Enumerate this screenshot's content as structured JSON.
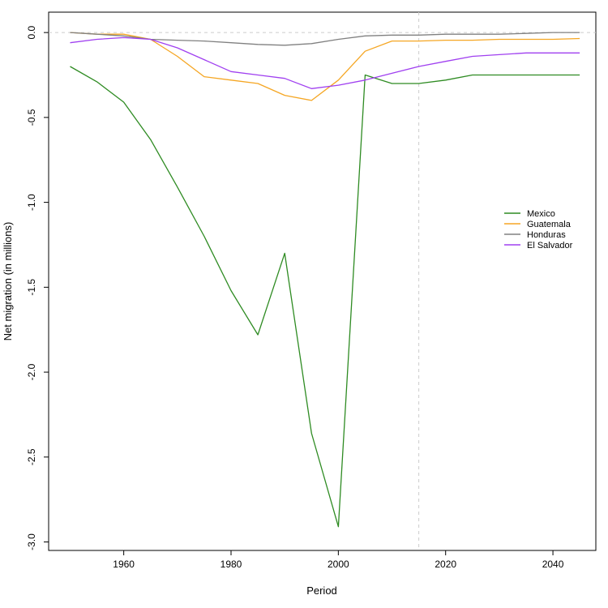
{
  "chart_data": {
    "type": "line",
    "title": "",
    "xlabel": "Period",
    "ylabel": "Net migration (in millions)",
    "xlim": [
      1946,
      2048
    ],
    "ylim": [
      -3.05,
      0.12
    ],
    "xticks": [
      1960,
      1980,
      2000,
      2020,
      2040
    ],
    "yticks": [
      0.0,
      -0.5,
      -1.0,
      -1.5,
      -2.0,
      -2.5,
      -3.0
    ],
    "ytick_labels": [
      "0.0",
      "-0.5",
      "-1.0",
      "-1.5",
      "-2.0",
      "-2.5",
      "-3.0"
    ],
    "reference_lines": {
      "hline_y": 0,
      "vline_x": 2015
    },
    "legend_position": "right",
    "x": [
      1950,
      1955,
      1960,
      1965,
      1970,
      1975,
      1980,
      1985,
      1990,
      1995,
      2000,
      2005,
      2010,
      2015,
      2020,
      2025,
      2030,
      2035,
      2040,
      2045
    ],
    "series": [
      {
        "name": "Mexico",
        "color": "#2e8b22",
        "values": [
          -0.2,
          -0.29,
          -0.41,
          -0.63,
          -0.91,
          -1.2,
          -1.52,
          -1.78,
          -1.3,
          -2.36,
          -2.91,
          -0.25,
          -0.3,
          -0.3,
          -0.28,
          -0.25,
          -0.25,
          -0.25,
          -0.25,
          -0.25
        ]
      },
      {
        "name": "Guatemala",
        "color": "#f5a623",
        "values": [
          0.0,
          -0.01,
          -0.01,
          -0.04,
          -0.14,
          -0.26,
          -0.28,
          -0.3,
          -0.37,
          -0.4,
          -0.28,
          -0.11,
          -0.05,
          -0.05,
          -0.045,
          -0.045,
          -0.04,
          -0.04,
          -0.04,
          -0.035
        ]
      },
      {
        "name": "Honduras",
        "color": "#808080",
        "values": [
          0.0,
          -0.01,
          -0.02,
          -0.04,
          -0.045,
          -0.05,
          -0.06,
          -0.07,
          -0.075,
          -0.065,
          -0.04,
          -0.02,
          -0.015,
          -0.015,
          -0.01,
          -0.01,
          -0.01,
          -0.005,
          0.0,
          0.0
        ]
      },
      {
        "name": "El Salvador",
        "color": "#a040f0",
        "values": [
          -0.06,
          -0.04,
          -0.03,
          -0.04,
          -0.09,
          -0.16,
          -0.23,
          -0.25,
          -0.27,
          -0.33,
          -0.31,
          -0.28,
          -0.24,
          -0.2,
          -0.17,
          -0.14,
          -0.13,
          -0.12,
          -0.12,
          -0.12
        ]
      }
    ]
  }
}
